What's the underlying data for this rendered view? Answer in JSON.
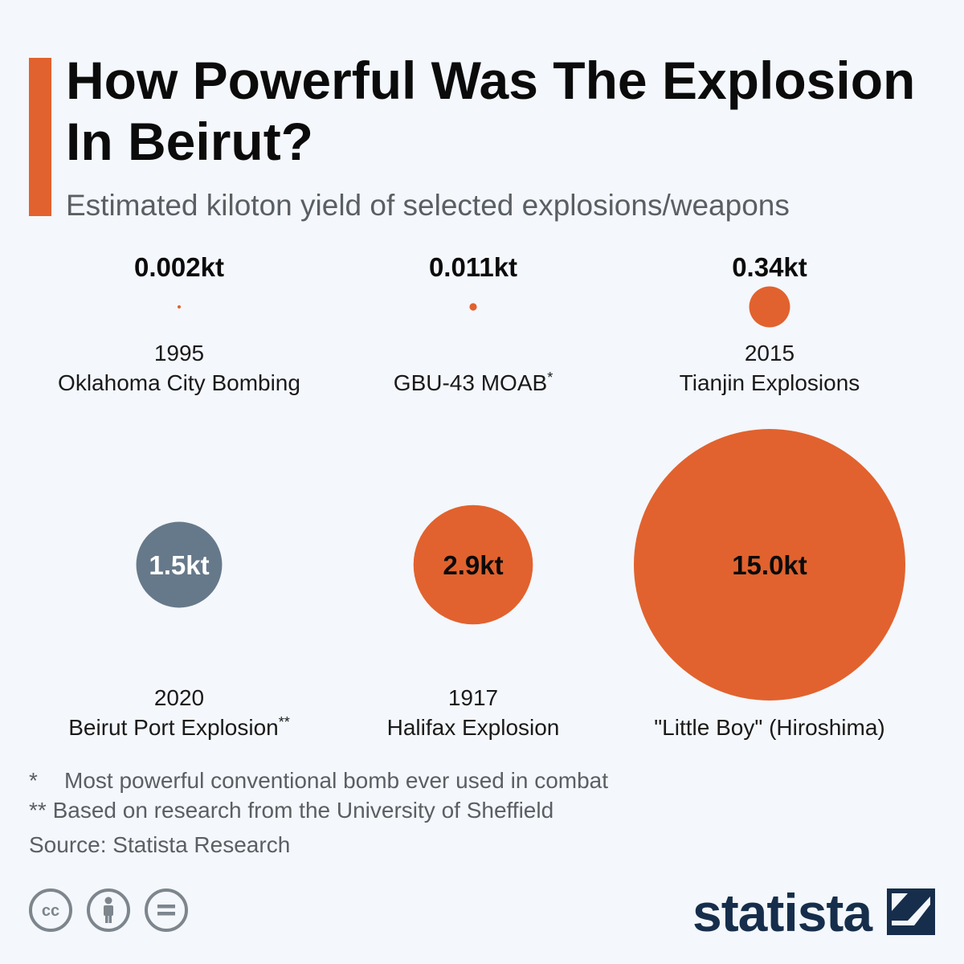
{
  "header": {
    "title": "How Powerful Was The Explosion In Beirut?",
    "subtitle": "Estimated kiloton yield of selected explosions/weapons"
  },
  "chart_data": {
    "type": "bubble",
    "title": "How Powerful Was The Explosion In Beirut?",
    "subtitle": "Estimated kiloton yield of selected explosions/weapons",
    "unit": "kt",
    "items": [
      {
        "value": 0.002,
        "label": "0.002kt",
        "year": "1995",
        "name": "Oklahoma City Bombing",
        "marker": "",
        "color": "#e1622e"
      },
      {
        "value": 0.011,
        "label": "0.011kt",
        "year": "",
        "name": "GBU-43 MOAB",
        "marker": "*",
        "color": "#e1622e"
      },
      {
        "value": 0.34,
        "label": "0.34kt",
        "year": "2015",
        "name": "Tianjin Explosions",
        "marker": "",
        "color": "#e1622e"
      },
      {
        "value": 1.5,
        "label": "1.5kt",
        "year": "2020",
        "name": "Beirut Port Explosion",
        "marker": "**",
        "color": "#66798a"
      },
      {
        "value": 2.9,
        "label": "2.9kt",
        "year": "1917",
        "name": "Halifax Explosion",
        "marker": "",
        "color": "#e1622e"
      },
      {
        "value": 15.0,
        "label": "15.0kt",
        "year": "",
        "name": "\"Little Boy\" (Hiroshima)",
        "marker": "",
        "color": "#e1622e"
      }
    ]
  },
  "footnotes": {
    "note1_marker": "*",
    "note1_text": "Most powerful conventional bomb ever used in combat",
    "note2_marker": "**",
    "note2_text": "Based on research from the University of Sheffield",
    "source": "Source: Statista Research"
  },
  "brand": {
    "name": "statista",
    "color": "#162e4b"
  },
  "license_icons": [
    "creative-commons-icon",
    "attribution-icon",
    "no-derivatives-icon"
  ]
}
